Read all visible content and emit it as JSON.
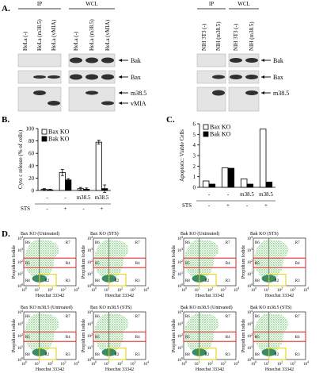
{
  "panel_a": {
    "label": "A.",
    "left": {
      "groups": [
        "IP",
        "WCL"
      ],
      "lanes": [
        "HeLa (-)",
        "HeLa (m38.5)",
        "HeLa (vMIA)",
        "HeLa (-)",
        "HeLa (m38.5)",
        "HeLa (vMIA)"
      ],
      "bands": [
        "Bak",
        "Bax",
        "m38.5",
        "vMIA"
      ]
    },
    "right": {
      "groups": [
        "IP",
        "WCL"
      ],
      "lanes": [
        "NIH 3T3 (-)",
        "NIH (m38.5)",
        "NIH 3T3 (-)",
        "NIH (m38.5)"
      ],
      "bands": [
        "Bak",
        "Bax",
        "m38.5"
      ]
    }
  },
  "chart_data": [
    {
      "type": "bar",
      "panel_label": "B.",
      "y_label": "Cyto c release (% of cells)",
      "ylim": [
        0,
        100
      ],
      "yticks": [
        0,
        20,
        40,
        60,
        80,
        100
      ],
      "categories": [
        "-",
        "-",
        "m38.5",
        "m38.5"
      ],
      "sts": [
        "-",
        "+",
        "-",
        "+"
      ],
      "sts_label": "STS",
      "series": [
        {
          "name": "Bax KO",
          "color": "#ffffff",
          "values": [
            2,
            29,
            3,
            78
          ],
          "errors": [
            1,
            5,
            2,
            3
          ]
        },
        {
          "name": "Bak KO",
          "color": "#000000",
          "values": [
            1,
            17,
            2,
            3
          ],
          "errors": [
            1,
            2,
            2,
            6
          ]
        }
      ]
    },
    {
      "type": "bar",
      "panel_label": "C.",
      "y_label": "Apoptotic: Viable Cells",
      "ylim": [
        0,
        6
      ],
      "yticks": [
        0,
        1,
        2,
        3,
        4,
        5,
        6
      ],
      "categories": [
        "-",
        "-",
        "m38.5",
        "m38.5"
      ],
      "sts": [
        "-",
        "+",
        "-",
        "+"
      ],
      "sts_label": "STS",
      "series": [
        {
          "name": "Bax KO",
          "color": "#ffffff",
          "values": [
            0.6,
            1.85,
            0.8,
            5.5
          ]
        },
        {
          "name": "Bak KO",
          "color": "#000000",
          "values": [
            0.3,
            1.8,
            0.3,
            0.5
          ]
        }
      ]
    }
  ],
  "panel_d": {
    "label": "D.",
    "x_label": "Hoechst 33342",
    "y_label": "Propidium Iodide",
    "tick_base": "10",
    "tick_exponents": [
      "0",
      "1",
      "2",
      "3",
      "4"
    ],
    "regions": [
      "R6",
      "R7",
      "R5",
      "R4",
      "R8",
      "R2",
      "R3"
    ],
    "plots": [
      "Bax KO (Untreated)",
      "Bax KO (STS)",
      "Bak KO (Untreated)",
      "Bak KO (STS)",
      "Bax KO m38.5 (Untreated)",
      "Bax KO m38.5 (STS)",
      "Bak KO m38.5 (Untreated)",
      "Bak KO m38.5 (STS)"
    ]
  }
}
